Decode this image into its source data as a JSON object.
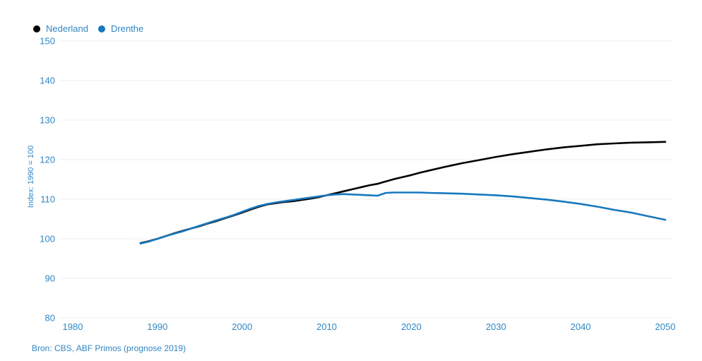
{
  "source": "Bron: CBS, ABF Primos (prognose 2019)",
  "colors": {
    "axis_text": "#2f87c4",
    "grid_line": "#efefef",
    "nederland_line": "#000000",
    "drenthe_line": "#1878be",
    "background": "#ffffff"
  },
  "chart_data": {
    "type": "line",
    "title": "",
    "xlabel": "",
    "ylabel": "Index: 1990 = 100",
    "ylim": [
      80,
      150
    ],
    "xlim": [
      1980,
      2050
    ],
    "yticks": [
      80,
      90,
      100,
      110,
      120,
      130,
      140,
      150
    ],
    "xticks": [
      1980,
      1990,
      2000,
      2010,
      2020,
      2030,
      2040,
      2050
    ],
    "grid": "horizontal-only",
    "legend_position": "top-left",
    "x": [
      1988,
      1989,
      1990,
      1991,
      1992,
      1993,
      1994,
      1995,
      1996,
      1997,
      1998,
      1999,
      2000,
      2001,
      2002,
      2003,
      2004,
      2005,
      2006,
      2007,
      2008,
      2009,
      2010,
      2011,
      2012,
      2013,
      2014,
      2015,
      2016,
      2017,
      2018,
      2019,
      2020,
      2021,
      2022,
      2024,
      2026,
      2028,
      2030,
      2032,
      2034,
      2036,
      2038,
      2040,
      2042,
      2044,
      2046,
      2048,
      2050
    ],
    "series": [
      {
        "name": "Nederland",
        "color": "#000000",
        "values": [
          98.9,
          99.4,
          100.0,
          100.7,
          101.4,
          102.0,
          102.6,
          103.2,
          103.9,
          104.5,
          105.2,
          105.9,
          106.6,
          107.4,
          108.1,
          108.7,
          109.0,
          109.3,
          109.5,
          109.8,
          110.1,
          110.5,
          111.0,
          111.5,
          112.0,
          112.5,
          113.0,
          113.5,
          113.9,
          114.5,
          115.1,
          115.6,
          116.1,
          116.7,
          117.2,
          118.2,
          119.1,
          119.9,
          120.7,
          121.4,
          122.0,
          122.6,
          123.1,
          123.5,
          123.9,
          124.1,
          124.3,
          124.4,
          124.5
        ]
      },
      {
        "name": "Drenthe",
        "color": "#1878be",
        "values": [
          98.8,
          99.3,
          100.0,
          100.7,
          101.3,
          101.9,
          102.6,
          103.3,
          104.0,
          104.7,
          105.3,
          106.0,
          106.8,
          107.6,
          108.3,
          108.8,
          109.2,
          109.5,
          109.8,
          110.1,
          110.4,
          110.7,
          111.0,
          111.2,
          111.3,
          111.2,
          111.1,
          111.0,
          110.9,
          111.6,
          111.7,
          111.7,
          111.7,
          111.7,
          111.6,
          111.5,
          111.4,
          111.2,
          111.0,
          110.7,
          110.3,
          109.9,
          109.4,
          108.8,
          108.1,
          107.3,
          106.6,
          105.7,
          104.8
        ]
      }
    ]
  }
}
